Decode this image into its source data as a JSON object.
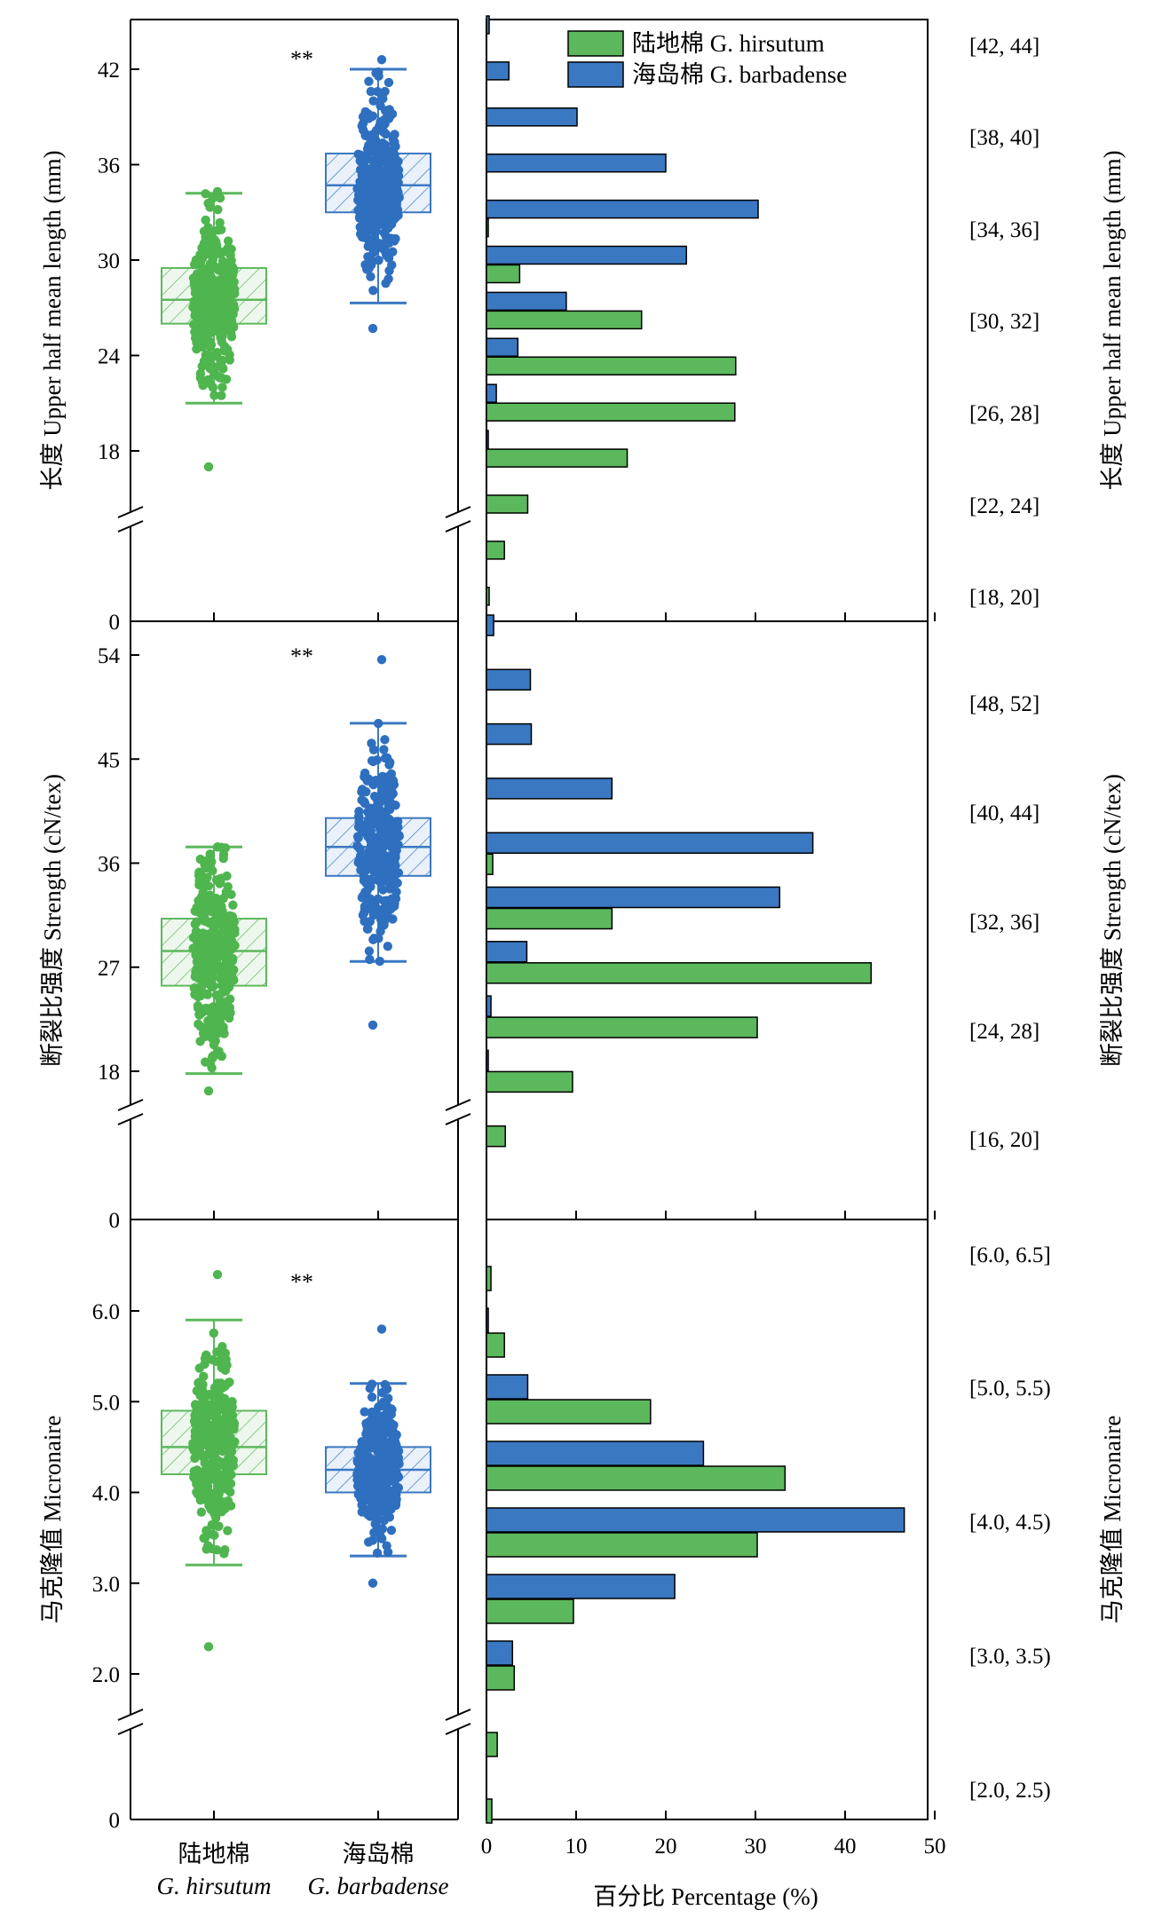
{
  "colors": {
    "hirsutum": "#5cb85c",
    "hirsutum_dark": "#3e9a3e",
    "barbadense": "#3a78c2",
    "barbadense_dark": "#1f5aa6",
    "box_fill_green": "#e6f3e6",
    "box_fill_blue": "#e3ecf8"
  },
  "legend": {
    "hirsutum": "陆地棉 G. hirsutum",
    "barbadense": "海岛棉 G. barbadense"
  },
  "xaxis_left": {
    "groups": [
      {
        "cn": "陆地棉",
        "latin": "G. hirsutum"
      },
      {
        "cn": "海岛棉",
        "latin": "G. barbadense"
      }
    ]
  },
  "xaxis_right": {
    "label": "百分比 Percentage (%)",
    "ticks": [
      "0",
      "10",
      "20",
      "30",
      "40",
      "50"
    ]
  },
  "chart_data": [
    {
      "type": "box",
      "panel": "upper_half_mean_length",
      "ylabel": "长度 Upper half mean length (mm)",
      "yticks": [
        "42",
        "36",
        "30",
        "24",
        "18",
        "0"
      ],
      "significance": "**",
      "series": [
        {
          "name": "陆地棉 G. hirsutum",
          "whisker_low": 21.0,
          "q1": 26.0,
          "median": 27.5,
          "q3": 29.5,
          "whisker_high": 34.2,
          "min": 17.0,
          "max": 34.3
        },
        {
          "name": "海岛棉 G. barbadense",
          "whisker_low": 27.3,
          "q1": 33.0,
          "median": 34.7,
          "q3": 36.7,
          "whisker_high": 42.0,
          "min": 25.7,
          "max": 42.6
        }
      ]
    },
    {
      "type": "box",
      "panel": "strength",
      "ylabel": "断裂比强度 Strength (cN/tex)",
      "yticks": [
        "54",
        "45",
        "36",
        "27",
        "18",
        "0"
      ],
      "significance": "**",
      "series": [
        {
          "name": "陆地棉 G. hirsutum",
          "whisker_low": 17.8,
          "q1": 25.4,
          "median": 28.4,
          "q3": 31.2,
          "whisker_high": 37.4,
          "min": 16.3,
          "max": 37.4
        },
        {
          "name": "海岛棉 G. barbadense",
          "whisker_low": 27.5,
          "q1": 34.9,
          "median": 37.4,
          "q3": 39.9,
          "whisker_high": 48.1,
          "min": 22.0,
          "max": 53.6
        }
      ]
    },
    {
      "type": "box",
      "panel": "micronaire",
      "ylabel": "马克隆值 Micronaire",
      "yticks": [
        "6.0",
        "5.0",
        "4.0",
        "3.0",
        "2.0",
        "0"
      ],
      "significance": "**",
      "series": [
        {
          "name": "陆地棉 G. hirsutum",
          "whisker_low": 3.2,
          "q1": 4.2,
          "median": 4.5,
          "q3": 4.9,
          "whisker_high": 5.9,
          "min": 2.3,
          "max": 6.4
        },
        {
          "name": "海岛棉 G. barbadense",
          "whisker_low": 3.3,
          "q1": 4.0,
          "median": 4.25,
          "q3": 4.5,
          "whisker_high": 5.2,
          "min": 3.0,
          "max": 5.8
        }
      ]
    },
    {
      "type": "bar",
      "orientation": "horizontal",
      "panel": "upper_half_mean_length_distribution",
      "ylabel": "长度 Upper half mean length (mm)",
      "category_labels": [
        "[42, 44]",
        "[38, 40]",
        "[34, 36]",
        "[30, 32]",
        "[26, 28]",
        "[22, 24]",
        "[18, 20]"
      ],
      "bins": [
        "[42,44]",
        "[40,42)",
        "[38,40]",
        "[36,38)",
        "[34,36]",
        "[32,34)",
        "[30,32]",
        "[28,30)",
        "[26,28]",
        "[24,26)",
        "[22,24]",
        "[20,22)",
        "[18,20]"
      ],
      "series": [
        {
          "name": "海岛棉 G. barbadense",
          "values": [
            0.3,
            2.5,
            10.1,
            20.0,
            30.3,
            22.3,
            8.9,
            3.5,
            1.1,
            0.2,
            0,
            0,
            0
          ]
        },
        {
          "name": "陆地棉 G. hirsutum",
          "values": [
            0,
            0,
            0,
            0,
            0.2,
            3.7,
            17.3,
            27.8,
            27.7,
            15.7,
            4.6,
            2.0,
            0.3
          ]
        }
      ]
    },
    {
      "type": "bar",
      "orientation": "horizontal",
      "panel": "strength_distribution",
      "ylabel": "断裂比强度 Strength (cN/tex)",
      "category_labels": [
        "[48, 52]",
        "[40, 44]",
        "[32, 36]",
        "[24, 28]",
        "[16, 20]"
      ],
      "bins": [
        "[52,56)",
        "[48,52]",
        "[44,48)",
        "[40,44]",
        "[36,40)",
        "[32,36]",
        "[28,32)",
        "[24,28]",
        "[20,24)",
        "[16,20]"
      ],
      "series": [
        {
          "name": "海岛棉 G. barbadense",
          "values": [
            0.8,
            4.9,
            5.0,
            14.0,
            36.4,
            32.7,
            4.5,
            0.5,
            0.2,
            0
          ]
        },
        {
          "name": "陆地棉 G. hirsutum",
          "values": [
            0,
            0,
            0,
            0,
            0.7,
            14.0,
            42.9,
            30.2,
            9.6,
            2.1
          ]
        }
      ]
    },
    {
      "type": "bar",
      "orientation": "horizontal",
      "panel": "micronaire_distribution",
      "ylabel": "马克隆值 Micronaire",
      "category_labels": [
        "[6.0, 6.5]",
        "[5.0, 5.5)",
        "[4.0, 4.5)",
        "[3.0, 3.5)",
        "[2.0, 2.5)"
      ],
      "bins": [
        "[6.0,6.5]",
        "[5.5,6.0)",
        "[5.0,5.5)",
        "[4.5,5.0)",
        "[4.0,4.5)",
        "[3.5,4.0)",
        "[3.0,3.5)",
        "[2.5,3.0)",
        "[2.0,2.5)"
      ],
      "series": [
        {
          "name": "海岛棉 G. barbadense",
          "values": [
            0,
            0.2,
            4.6,
            24.2,
            46.6,
            21.0,
            2.9,
            0,
            0
          ]
        },
        {
          "name": "陆地棉 G. hirsutum",
          "values": [
            0.5,
            2.0,
            18.3,
            33.3,
            30.2,
            9.7,
            3.1,
            1.2,
            0.6
          ]
        }
      ]
    }
  ]
}
